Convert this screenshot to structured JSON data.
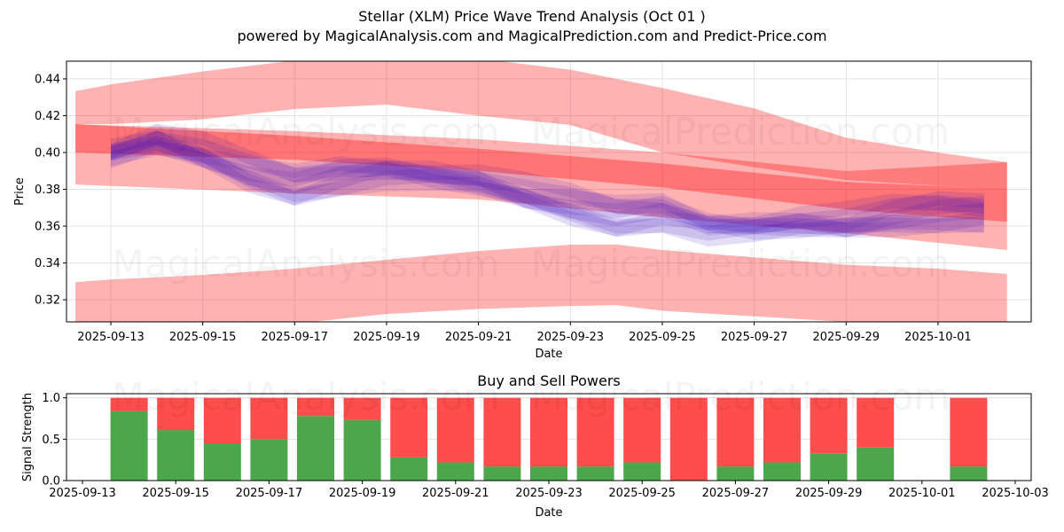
{
  "header": {
    "title": "Stellar (XLM) Price Wave Trend Analysis (Oct 01 )",
    "subtitle": "powered by MagicalAnalysis.com and MagicalPrediction.com and Predict-Price.com"
  },
  "watermarks": [
    "MagicalAnalysis.com",
    "MagicalPrediction.com"
  ],
  "colors": {
    "band_red": "#ff0000",
    "wave_blue": "#0000ff",
    "buy_green": "#4ca64c",
    "sell_red": "#ff4c4c",
    "grid": "#e0e0e0"
  },
  "chart_data": [
    {
      "type": "area",
      "title": "",
      "xlabel": "Date",
      "ylabel": "Price",
      "ylim": [
        0.308,
        0.4496
      ],
      "xlim": [
        "2025-09-11T14:00",
        "2025-10-03T00:00"
      ],
      "x_ticks": [
        "2025-09-13",
        "2025-09-15",
        "2025-09-17",
        "2025-09-19",
        "2025-09-21",
        "2025-09-23",
        "2025-09-25",
        "2025-09-27",
        "2025-09-29",
        "2025-10-01"
      ],
      "y_ticks": [
        0.32,
        0.34,
        0.36,
        0.38,
        0.4,
        0.42,
        0.44
      ],
      "grid": true,
      "bands": [
        {
          "name": "upper-outer-band",
          "color": "#ff0000",
          "opacity": 0.3,
          "x": [
            -0.77,
            0,
            2,
            4,
            6,
            8,
            10,
            12,
            14,
            16,
            18,
            19.5
          ],
          "upper": [
            0.4333,
            0.437,
            0.444,
            0.45,
            0.4525,
            0.451,
            0.445,
            0.435,
            0.424,
            0.408,
            0.4,
            0.3947
          ],
          "lower": [
            0.4154,
            0.4154,
            0.418,
            0.4236,
            0.426,
            0.42,
            0.415,
            0.4,
            0.392,
            0.385,
            0.382,
            0.38
          ]
        },
        {
          "name": "lower-outer-band",
          "color": "#ff0000",
          "opacity": 0.3,
          "x": [
            -0.77,
            0,
            2,
            4,
            6,
            8,
            10,
            11,
            12,
            14,
            16,
            18,
            19.5
          ],
          "upper": [
            0.3296,
            0.331,
            0.3335,
            0.3369,
            0.3417,
            0.3465,
            0.3499,
            0.35,
            0.347,
            0.343,
            0.339,
            0.3369,
            0.334
          ],
          "lower": [
            0.3,
            0.3,
            0.303,
            0.307,
            0.3123,
            0.315,
            0.3166,
            0.3171,
            0.314,
            0.311,
            0.308,
            0.305,
            0.303
          ]
        },
        {
          "name": "central-band",
          "color": "#ff0000",
          "opacity": 0.3,
          "x": [
            -0.77,
            4,
            8,
            12,
            16,
            19.5
          ],
          "upper": [
            0.4154,
            0.4116,
            0.4072,
            0.4,
            0.3899,
            0.3947
          ],
          "lower": [
            0.3826,
            0.3778,
            0.3745,
            0.3648,
            0.3561,
            0.347
          ]
        },
        {
          "name": "trend-band",
          "color": "#ff0000",
          "opacity": 0.35,
          "x": [
            -0.77,
            4,
            8,
            12,
            16,
            19.5
          ],
          "upper": [
            0.4154,
            0.409,
            0.402,
            0.394,
            0.384,
            0.3802
          ],
          "lower": [
            0.4,
            0.396,
            0.39,
            0.381,
            0.369,
            0.3624
          ]
        }
      ],
      "waves": {
        "color": "#0000ff",
        "x": [
          0,
          1,
          2,
          3,
          4,
          5,
          6,
          7,
          8,
          9,
          10,
          11,
          12,
          13,
          14,
          15,
          16,
          17,
          18,
          19
        ],
        "center": [
          0.4,
          0.407,
          0.4,
          0.39,
          0.383,
          0.388,
          0.39,
          0.388,
          0.385,
          0.378,
          0.372,
          0.366,
          0.368,
          0.36,
          0.36,
          0.362,
          0.362,
          0.366,
          0.368,
          0.368
        ],
        "count": 8
      }
    },
    {
      "type": "bar",
      "title": "Buy and Sell Powers",
      "xlabel": "Date",
      "ylabel": "Signal Strength",
      "ylim": [
        0,
        1.05
      ],
      "x_ticks": [
        "2025-09-13",
        "2025-09-15",
        "2025-09-17",
        "2025-09-19",
        "2025-09-21",
        "2025-09-23",
        "2025-09-25",
        "2025-09-27",
        "2025-09-29",
        "2025-10-01",
        "2025-10-03"
      ],
      "y_ticks": [
        "0.0",
        "0.5",
        "1.0"
      ],
      "grid": true,
      "categories": [
        "2025-09-14",
        "2025-09-15",
        "2025-09-16",
        "2025-09-17",
        "2025-09-18",
        "2025-09-19",
        "2025-09-20",
        "2025-09-21",
        "2025-09-22",
        "2025-09-23",
        "2025-09-24",
        "2025-09-25",
        "2025-09-26",
        "2025-09-27",
        "2025-09-28",
        "2025-09-29",
        "2025-09-30",
        "2025-10-02"
      ],
      "series": [
        {
          "name": "Buy",
          "color": "#4ca64c",
          "values": [
            0.84,
            0.61,
            0.45,
            0.5,
            0.78,
            0.73,
            0.28,
            0.22,
            0.17,
            0.17,
            0.17,
            0.22,
            0.0,
            0.17,
            0.22,
            0.33,
            0.4,
            0.17
          ]
        },
        {
          "name": "Sell",
          "color": "#ff4c4c",
          "values": [
            0.16,
            0.39,
            0.55,
            0.5,
            0.22,
            0.27,
            0.72,
            0.78,
            0.83,
            0.83,
            0.83,
            0.78,
            1.0,
            0.83,
            0.78,
            0.67,
            0.6,
            0.83
          ]
        }
      ]
    }
  ]
}
